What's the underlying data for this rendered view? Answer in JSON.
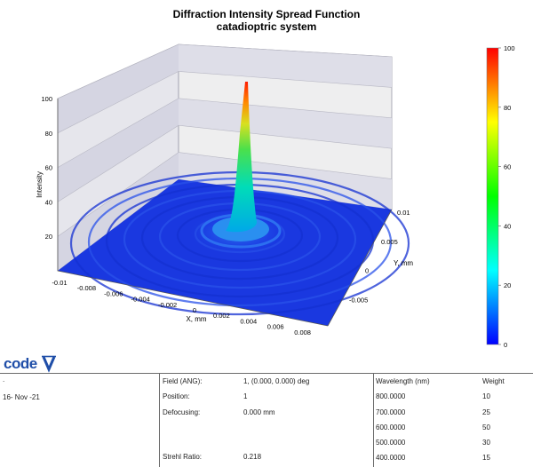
{
  "chart_data": {
    "type": "surface3d",
    "title": "Diffraction Intensity Spread Function",
    "subtitle": "catadioptric system",
    "zlabel": "Intensity",
    "xlabel": "X, mm",
    "ylabel": "Y, mm",
    "z_ticks": [
      "100",
      "80",
      "60",
      "40",
      "20"
    ],
    "z_tick_values": [
      100,
      80,
      60,
      40,
      20
    ],
    "zlim": [
      0,
      100
    ],
    "x_ticks": [
      "-0.01",
      "-0.008",
      "-0.006",
      "-0.004",
      "-0.002",
      "0",
      "0.002",
      "0.004",
      "0.006",
      "0.008"
    ],
    "x_tick_values": [
      -0.01,
      -0.008,
      -0.006,
      -0.004,
      -0.002,
      0,
      0.002,
      0.004,
      0.006,
      0.008
    ],
    "y_ticks": [
      "0.01",
      "0.005",
      "0",
      "-0.005"
    ],
    "y_tick_values": [
      0.01,
      0.005,
      0,
      -0.005
    ],
    "xlim": [
      -0.01,
      0.01
    ],
    "ylim": [
      -0.01,
      0.01
    ],
    "peak": {
      "x": 0,
      "y": 0,
      "z": 100
    },
    "colorbar": {
      "ticks": [
        "100",
        "80",
        "60",
        "40",
        "20",
        "0"
      ],
      "tick_values": [
        100,
        80,
        60,
        40,
        20,
        0
      ],
      "colors": [
        "#ff0000",
        "#ffff00",
        "#00ff00",
        "#00ffff",
        "#0000ff"
      ]
    },
    "floor_color": "#1a38e0"
  },
  "logo": {
    "text": "code V"
  },
  "info": {
    "c1": {
      "dot": ".",
      "date": "16- Nov -21"
    },
    "c2": {
      "field_label": "Field (ANG):",
      "field_value": "1, (0.000, 0.000) deg",
      "position_label": "Position:",
      "position_value": "1",
      "defocusing_label": "Defocusing:",
      "defocusing_value": "0.000 mm",
      "strehl_label": "Strehl Ratio:",
      "strehl_value": "0.218"
    },
    "c3": {
      "wavelength_header": "Wavelength (nm)",
      "weight_header": "Weight",
      "rows": [
        {
          "wl": "800.0000",
          "w": "10"
        },
        {
          "wl": "700.0000",
          "w": "25"
        },
        {
          "wl": "600.0000",
          "w": "50"
        },
        {
          "wl": "500.0000",
          "w": "30"
        },
        {
          "wl": "400.0000",
          "w": "15"
        }
      ]
    }
  }
}
